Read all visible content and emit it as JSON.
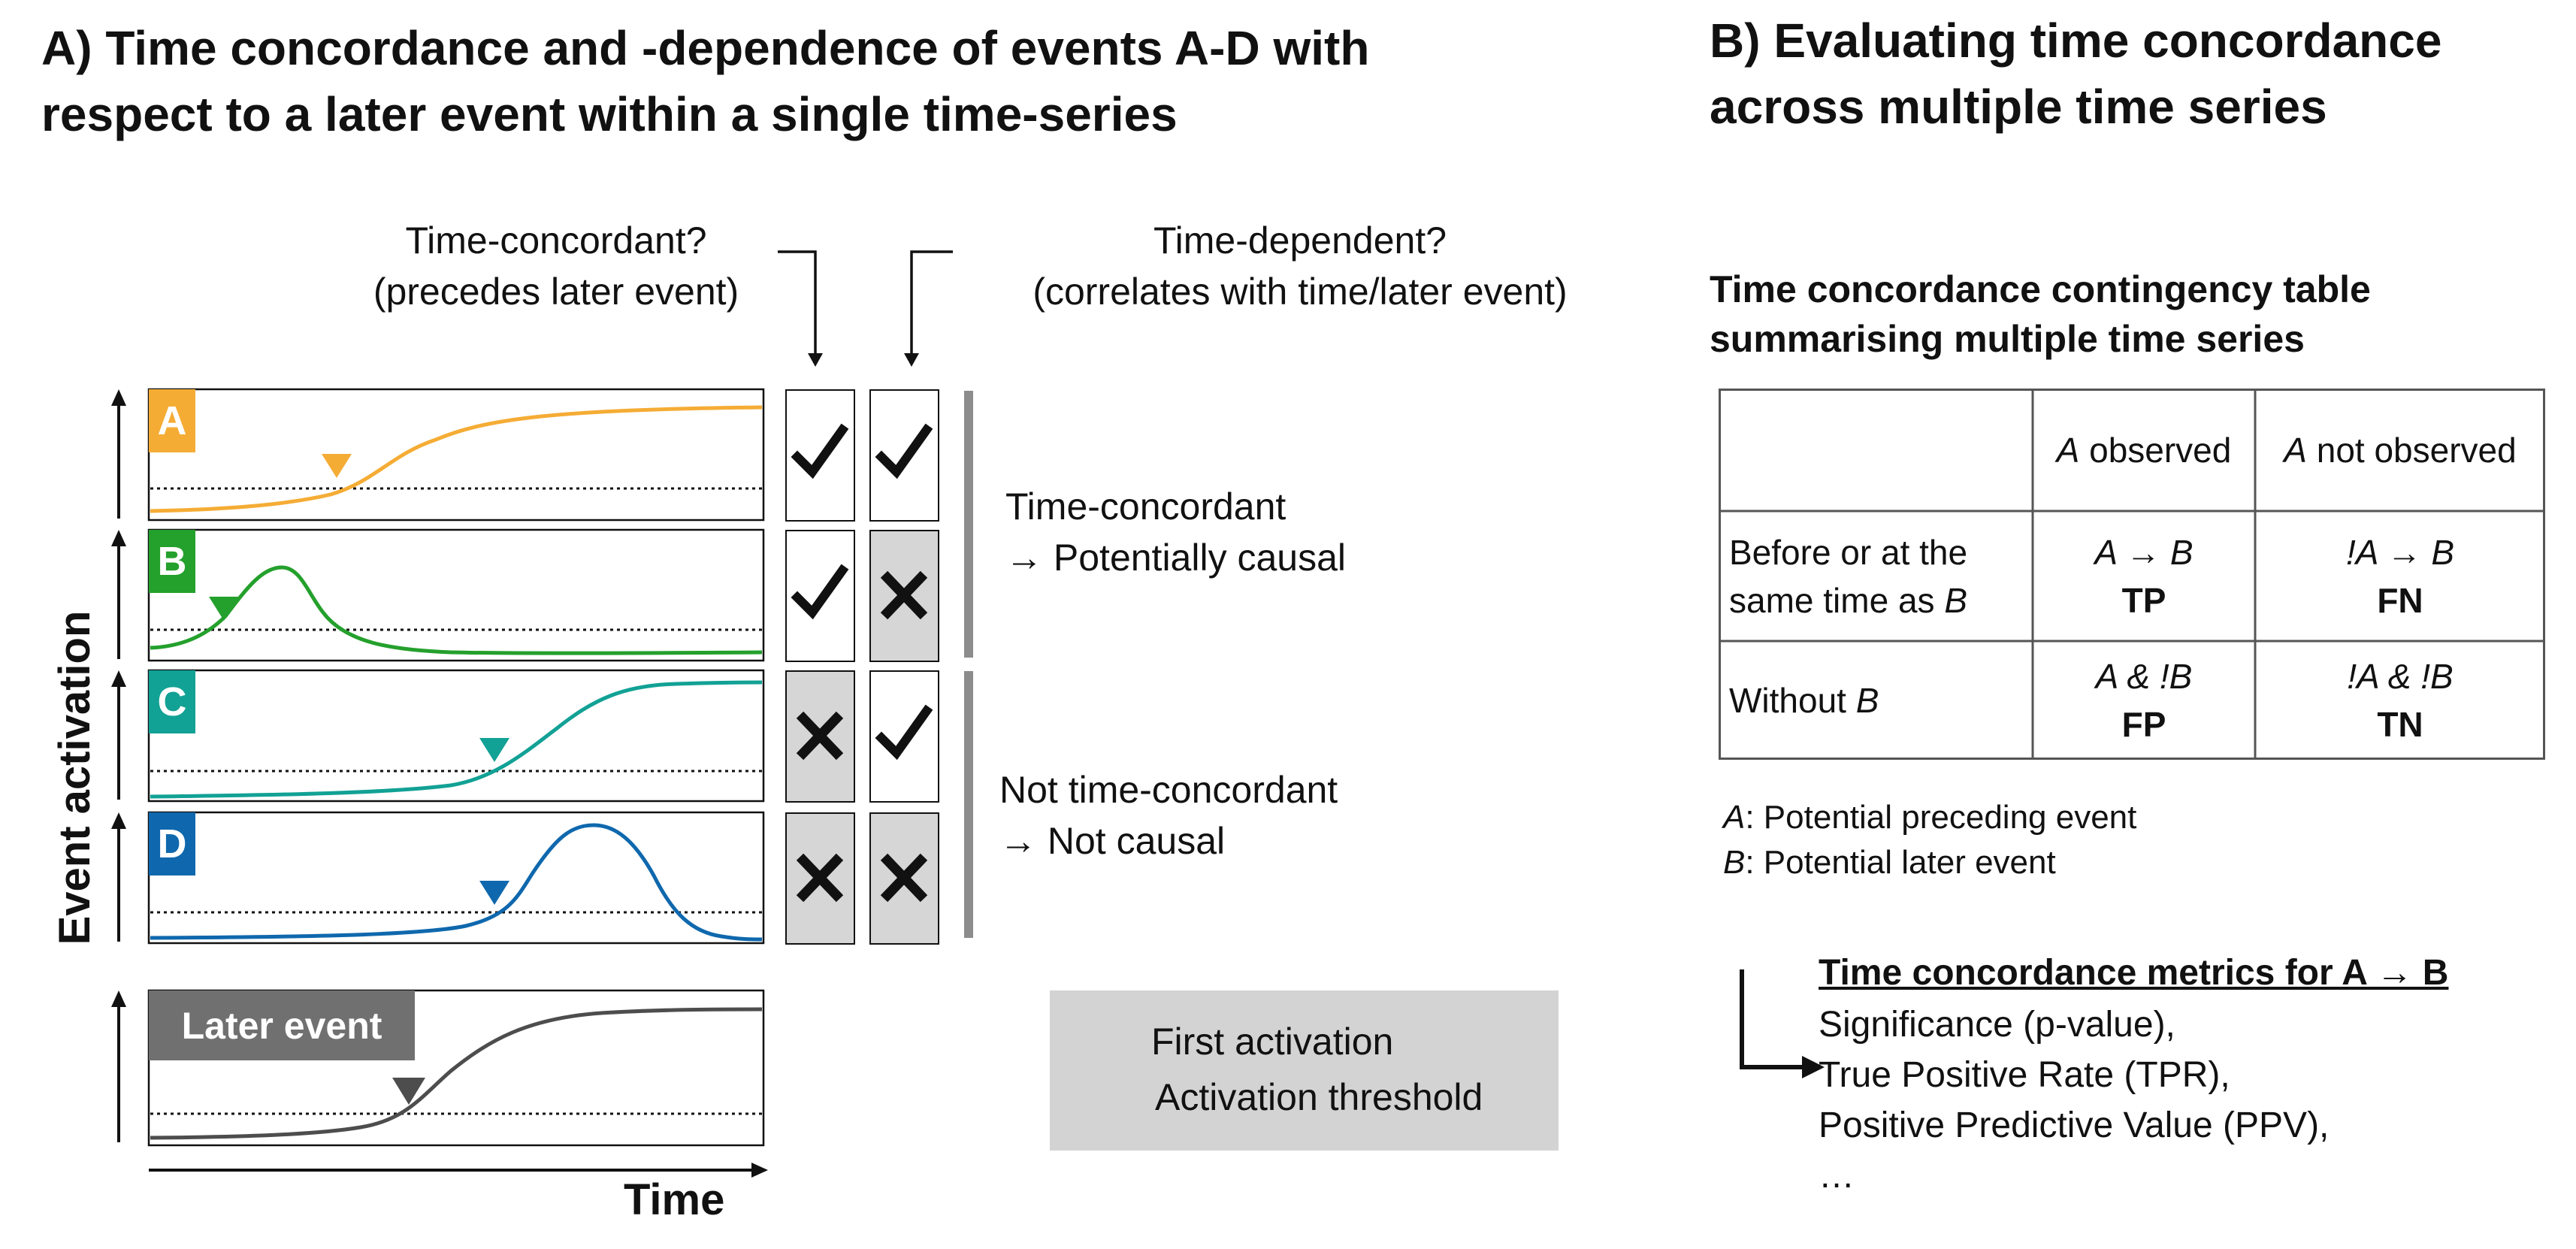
{
  "panel_a": {
    "title_line1": "A) Time concordance and -dependence of events A-D with",
    "title_line2": "respect to a later event within a single time-series",
    "question_concordant_line1": "Time-concordant?",
    "question_concordant_line2": "(precedes later event)",
    "question_dependent_line1": "Time-dependent?",
    "question_dependent_line2": "(correlates with time/later event)",
    "y_axis_label": "Event activation",
    "x_axis_label": "Time",
    "events": [
      {
        "label": "A",
        "color": "#f5ac35",
        "concordant": true,
        "dependent": true,
        "curve": "sigmoid"
      },
      {
        "label": "B",
        "color": "#24a02c",
        "concordant": true,
        "dependent": false,
        "curve": "peak"
      },
      {
        "label": "C",
        "color": "#12a195",
        "concordant": false,
        "dependent": true,
        "curve": "sigmoid"
      },
      {
        "label": "D",
        "color": "#0f68ad",
        "concordant": false,
        "dependent": false,
        "curve": "peak"
      }
    ],
    "later_event_label": "Later event",
    "later_event_color": "#4d4d4d",
    "group_concordant_line1": "Time-concordant",
    "group_concordant_line2": "→ Potentially causal",
    "group_not_concordant_line1": "Not time-concordant",
    "group_not_concordant_line2": "→ Not causal",
    "check_icon": "check-icon",
    "cross_icon": "cross-icon",
    "legend": {
      "first_activation": "First activation",
      "activation_threshold": "Activation threshold"
    }
  },
  "panel_b": {
    "title_line1": "B) Evaluating time concordance",
    "title_line2": "across multiple time series",
    "table_title_line1": "Time concordance contingency table",
    "table_title_line2": "summarising multiple time series",
    "table": {
      "col_a_observed_var": "A",
      "col_a_observed_text": " observed",
      "col_a_not_observed_var": "A",
      "col_a_not_observed_text": " not observed",
      "row1_line1": "Before or at the",
      "row1_line2_prefix": "same time as ",
      "row1_line2_var": "B",
      "row2_prefix": "Without ",
      "row2_var": "B",
      "tp_expr": "A → B",
      "tp_label": "TP",
      "fn_expr": "!A → B",
      "fn_label": "FN",
      "fp_expr": "A & !B",
      "fp_label": "FP",
      "tn_expr": "!A & !B",
      "tn_label": "TN"
    },
    "def_a_var": "A",
    "def_a_text": ": Potential preceding event",
    "def_b_var": "B",
    "def_b_text": ": Potential later event",
    "metrics_title": "Time concordance metrics for A → B",
    "metrics": [
      "Significance (p-value),",
      "True Positive Rate (TPR),",
      "Positive Predictive Value (PPV),",
      "…"
    ]
  }
}
